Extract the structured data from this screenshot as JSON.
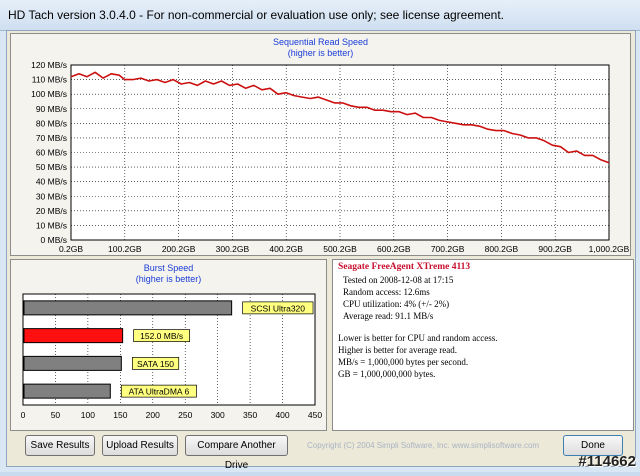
{
  "window": {
    "title": "HD Tach version 3.0.4.0  - For non-commercial or evaluation use only; see license agreement."
  },
  "read_chart": {
    "title": "Sequential Read Speed",
    "subtitle": "(higher is better)"
  },
  "burst_chart": {
    "title": "Burst Speed",
    "subtitle": "(higher is better)"
  },
  "info": {
    "drive_name": "Seagate FreeAgent XTreme 4113",
    "tested_on": "Tested on 2008-12-08 at 17:15",
    "random_access": "Random access: 12.6ms",
    "cpu_utilization": "CPU utilization: 4% (+/- 2%)",
    "average_read": "Average read: 91.1 MB/s",
    "notes": [
      "Lower is better for CPU and random access.",
      "Higher is better for average read.",
      "MB/s = 1,000,000 bytes per second.",
      "GB = 1,000,000,000 bytes."
    ]
  },
  "buttons": {
    "save": "Save Results",
    "upload": "Upload Results",
    "compare": "Compare Another Drive",
    "done": "Done"
  },
  "copyright": "Copyright (C) 2004 Simpli Software, Inc. www.simplisoftware.com",
  "watermark": "#114662",
  "colors": {
    "series": "#cc1010",
    "highlight_bar": "#ff1010",
    "bar": "#808080",
    "label_bg": "#ffff80",
    "grid": "#000000"
  },
  "chart_data": [
    {
      "type": "line",
      "title": "Sequential Read Speed",
      "subtitle": "(higher is better)",
      "xlabel": "",
      "ylabel": "",
      "x_tick_labels": [
        "0.2GB",
        "100.2GB",
        "200.2GB",
        "300.2GB",
        "400.2GB",
        "500.2GB",
        "600.2GB",
        "700.2GB",
        "800.2GB",
        "900.2GB",
        "1,000.2GB"
      ],
      "y_tick_labels": [
        "0 MB/s",
        "10 MB/s",
        "20 MB/s",
        "30 MB/s",
        "40 MB/s",
        "50 MB/s",
        "60 MB/s",
        "70 MB/s",
        "80 MB/s",
        "90 MB/s",
        "100 MB/s",
        "110 MB/s",
        "120 MB/s"
      ],
      "xlim": [
        0.2,
        1000.2
      ],
      "ylim": [
        0,
        120
      ],
      "grid": true,
      "series": [
        {
          "color": "#cc1010",
          "x": [
            0.2,
            15,
            30,
            45,
            60,
            75,
            90,
            100,
            115,
            130,
            145,
            160,
            175,
            190,
            205,
            220,
            235,
            250,
            265,
            280,
            295,
            310,
            325,
            340,
            355,
            370,
            385,
            400,
            415,
            430,
            445,
            460,
            475,
            490,
            505,
            520,
            535,
            550,
            565,
            580,
            595,
            610,
            625,
            640,
            655,
            670,
            685,
            700,
            715,
            730,
            745,
            760,
            775,
            790,
            805,
            820,
            835,
            850,
            865,
            880,
            895,
            910,
            925,
            940,
            955,
            970,
            985,
            1000.2
          ],
          "y": [
            112,
            114,
            112,
            115,
            111,
            114,
            113,
            110,
            110,
            111,
            109,
            110,
            108,
            110,
            107,
            108,
            106,
            109,
            107,
            109,
            106,
            107,
            104,
            106,
            103,
            104,
            100,
            101,
            99,
            98,
            97,
            98,
            96,
            94,
            94,
            92,
            91,
            91,
            89,
            89,
            88,
            88,
            86,
            87,
            84,
            84,
            82,
            81,
            80,
            79,
            79,
            78,
            76,
            75,
            75,
            73,
            72,
            70,
            70,
            68,
            65,
            64,
            60,
            61,
            58,
            58,
            55,
            53
          ]
        }
      ]
    },
    {
      "type": "bar",
      "title": "Burst Speed",
      "subtitle": "(higher is better)",
      "orientation": "horizontal",
      "xlim": [
        0,
        450
      ],
      "x_tick_labels": [
        "0",
        "50",
        "100",
        "150",
        "200",
        "250",
        "300",
        "350",
        "400",
        "450"
      ],
      "categories": [
        "SCSI Ultra320",
        "152.0 MB/s",
        "SATA 150",
        "ATA UltraDMA 6"
      ],
      "values": [
        320,
        152.0,
        150,
        133
      ],
      "highlight_index": 1
    }
  ]
}
